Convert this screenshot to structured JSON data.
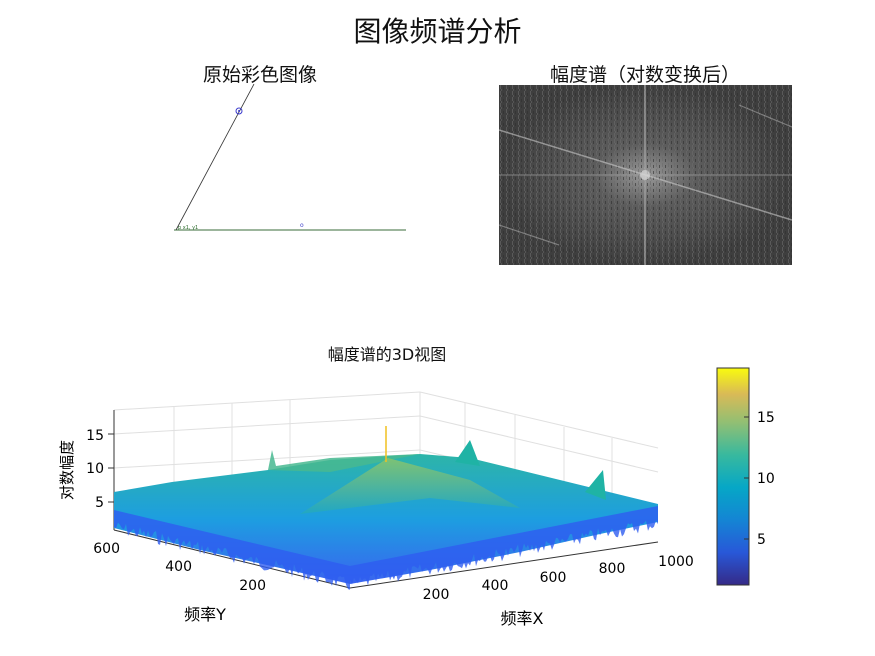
{
  "figure": {
    "suptitle": "图像频谱分析"
  },
  "panel_original": {
    "title": "原始彩色图像",
    "small_label": "p  x1, y1"
  },
  "panel_spectrum": {
    "title": "幅度谱（对数变换后）"
  },
  "chart_data": [
    {
      "type": "heatmap",
      "title": "幅度谱（对数变换后）",
      "description_values": {
        "center_bright": true,
        "diagonal_streaks": "bright lines from lower-left to upper-right through center, slope downward left-to-right"
      }
    },
    {
      "type": "surface",
      "title": "幅度谱的3D视图",
      "xlabel": "频率X",
      "ylabel": "频率Y",
      "zlabel": "对数幅度",
      "x_ticks": [
        200,
        400,
        600,
        800,
        1000
      ],
      "y_ticks": [
        200,
        400,
        600
      ],
      "z_ticks": [
        5,
        10,
        15
      ],
      "zlim": [
        2,
        18
      ],
      "xlim": [
        1,
        1050
      ],
      "ylim": [
        1,
        656
      ],
      "baseline_z": 7,
      "peak_z": 18,
      "colorbar": {
        "ticks": [
          5,
          10,
          15
        ],
        "range": [
          1.5,
          18.5
        ],
        "colormap": "parula"
      }
    }
  ]
}
